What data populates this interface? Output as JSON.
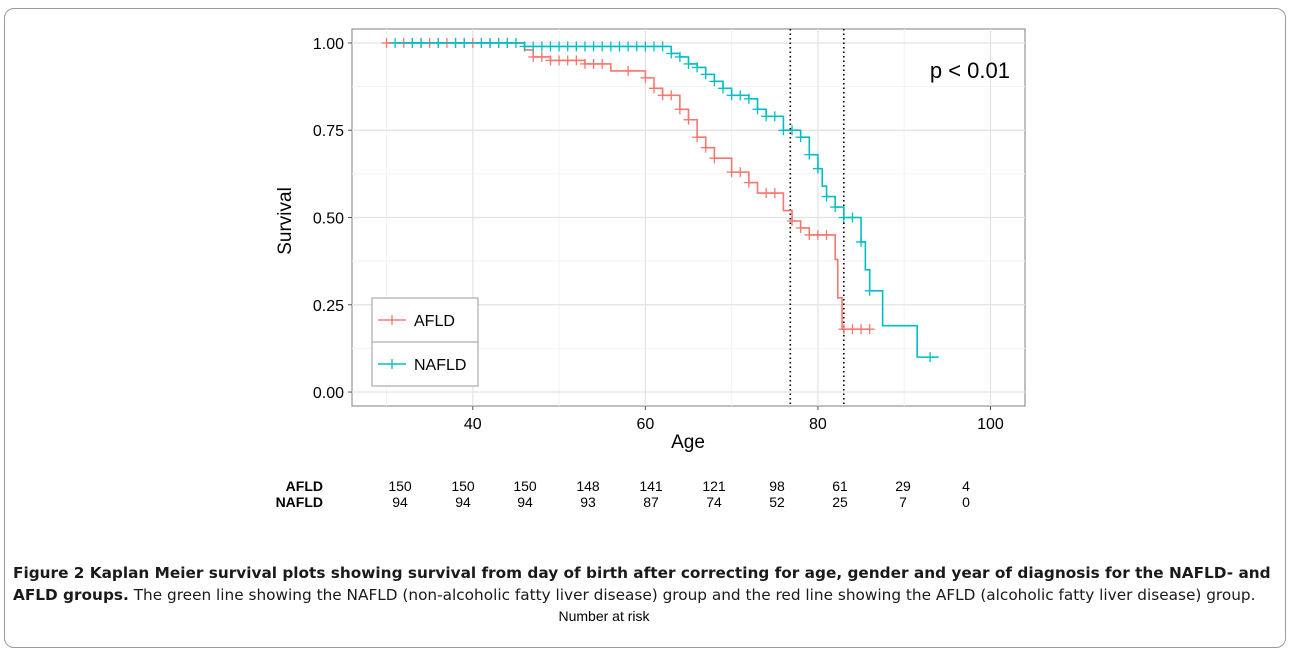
{
  "chart_data": {
    "type": "line",
    "xlabel": "Age",
    "ylabel": "Survival",
    "xlim": [
      26,
      104
    ],
    "ylim": [
      -0.04,
      1.04
    ],
    "x_ticks": [
      "40",
      "60",
      "80",
      "100"
    ],
    "x_tick_values": [
      40,
      60,
      80,
      100
    ],
    "y_ticks": [
      "0.00",
      "0.25",
      "0.50",
      "0.75",
      "1.00"
    ],
    "y_tick_values": [
      0,
      0.25,
      0.5,
      0.75,
      1.0
    ],
    "grid": true,
    "annotation": "p < 0.01",
    "reference_lines_x": [
      76.8,
      83
    ],
    "legend": {
      "placement": "bottom-left",
      "entries": [
        "AFLD",
        "NAFLD"
      ]
    },
    "series": [
      {
        "name": "AFLD",
        "color": "#f8766d",
        "step_points": [
          [
            30,
            1.0
          ],
          [
            45,
            1.0
          ],
          [
            46,
            0.98
          ],
          [
            47,
            0.96
          ],
          [
            49,
            0.95
          ],
          [
            53,
            0.94
          ],
          [
            56,
            0.92
          ],
          [
            60,
            0.9
          ],
          [
            61,
            0.87
          ],
          [
            62,
            0.85
          ],
          [
            64,
            0.81
          ],
          [
            65,
            0.78
          ],
          [
            66,
            0.73
          ],
          [
            67,
            0.7
          ],
          [
            68,
            0.67
          ],
          [
            70,
            0.63
          ],
          [
            72,
            0.6
          ],
          [
            73,
            0.57
          ],
          [
            76,
            0.52
          ],
          [
            77,
            0.49
          ],
          [
            78,
            0.47
          ],
          [
            79,
            0.45
          ],
          [
            82,
            0.38
          ],
          [
            82.3,
            0.27
          ],
          [
            82.8,
            0.18
          ],
          [
            86,
            0.18
          ]
        ],
        "censor_x": [
          30,
          32,
          33,
          34,
          35,
          36,
          37,
          38,
          39,
          40,
          41,
          42,
          43,
          44,
          47,
          48,
          49,
          50,
          51,
          52,
          53,
          54,
          55,
          58,
          60,
          61,
          62,
          63,
          64,
          65,
          66,
          67,
          68,
          70,
          71,
          72,
          74,
          75,
          77,
          78,
          79,
          80,
          81,
          83,
          84,
          85,
          86
        ]
      },
      {
        "name": "NAFLD",
        "color": "#00bfc4",
        "step_points": [
          [
            31,
            1.0
          ],
          [
            45,
            1.0
          ],
          [
            46,
            0.99
          ],
          [
            62,
            0.99
          ],
          [
            63,
            0.97
          ],
          [
            64,
            0.96
          ],
          [
            65,
            0.94
          ],
          [
            66,
            0.93
          ],
          [
            67,
            0.91
          ],
          [
            68,
            0.89
          ],
          [
            69,
            0.87
          ],
          [
            70,
            0.85
          ],
          [
            72,
            0.84
          ],
          [
            73,
            0.81
          ],
          [
            74,
            0.79
          ],
          [
            76,
            0.75
          ],
          [
            78,
            0.73
          ],
          [
            79,
            0.68
          ],
          [
            80,
            0.64
          ],
          [
            80.5,
            0.59
          ],
          [
            81,
            0.56
          ],
          [
            82,
            0.53
          ],
          [
            83,
            0.5
          ],
          [
            85,
            0.43
          ],
          [
            85.5,
            0.35
          ],
          [
            86,
            0.29
          ],
          [
            87.5,
            0.19
          ],
          [
            91.5,
            0.1
          ],
          [
            94,
            0.1
          ]
        ],
        "censor_x": [
          31,
          33,
          34,
          36,
          38,
          39,
          41,
          42,
          43,
          44,
          45,
          46,
          47,
          48,
          49,
          50,
          51,
          52,
          53,
          54,
          55,
          56,
          57,
          58,
          59,
          60,
          61,
          62,
          63,
          64,
          65,
          66,
          67,
          68,
          69,
          70,
          71,
          72,
          73,
          74,
          75,
          76,
          77,
          78,
          79,
          80,
          81,
          82,
          83,
          84,
          85,
          86,
          93
        ]
      }
    ]
  },
  "risk_table": {
    "title": "Number at risk",
    "rows": [
      {
        "label": "AFLD",
        "values": [
          "150",
          "150",
          "150",
          "148",
          "141",
          "121",
          "98",
          "61",
          "29",
          "4"
        ]
      },
      {
        "label": "NAFLD",
        "values": [
          "94",
          "94",
          "94",
          "93",
          "87",
          "74",
          "52",
          "25",
          "7",
          "0"
        ]
      }
    ]
  },
  "caption": {
    "bold": "Figure 2 Kaplan Meier survival plots showing survival from day of birth after correcting for age, gender and year of diagnosis for the NAFLD- and AFLD groups.",
    "text": " The green line showing the NAFLD (non-alcoholic fatty liver disease) group and the red line showing the AFLD (alcoholic fatty liver disease) group."
  }
}
